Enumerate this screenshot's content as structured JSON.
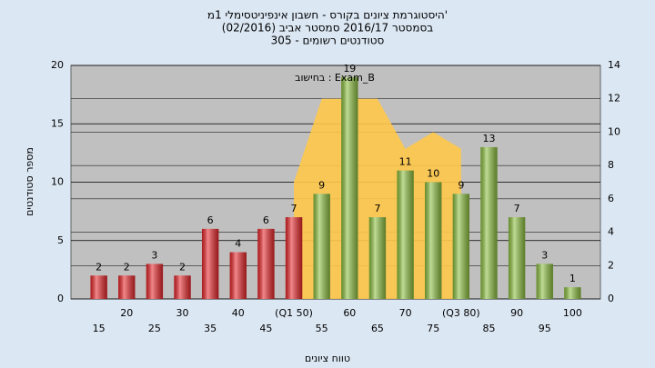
{
  "chart_data": {
    "type": "bar",
    "title": [
      "היסטוגרמת ציונים בקורס - חשבון אינפיניטסימלי 1מ'",
      "בסמסטר 2016/17 סמסטר אביב (02/2016)",
      "סטודנטים רשומים - 305"
    ],
    "annotation": "בחישוב : Exam_B",
    "x_label": "טווח ציונים",
    "y_label": "מספר סטודנטים",
    "categories": [
      "15",
      "20",
      "25",
      "30",
      "35",
      "40",
      "45",
      "(Q1 50)",
      "55",
      "60",
      "65",
      "70",
      "75",
      "(Q3 80)",
      "85",
      "90",
      "95",
      "100"
    ],
    "values": [
      2,
      2,
      3,
      2,
      6,
      4,
      6,
      7,
      9,
      19,
      7,
      11,
      10,
      9,
      13,
      7,
      3,
      1
    ],
    "colors": [
      "#e8262a",
      "#e8262a",
      "#e8262a",
      "#e8262a",
      "#e8262a",
      "#e8262a",
      "#e8262a",
      "#e8262a",
      "#8dc040",
      "#8dc040",
      "#8dc040",
      "#8dc040",
      "#8dc040",
      "#8dc040",
      "#8dc040",
      "#8dc040",
      "#8dc040",
      "#8dc040"
    ],
    "area": {
      "axis": "y2",
      "color": "#ffc84a",
      "values": [
        null,
        null,
        null,
        null,
        null,
        null,
        null,
        7,
        12,
        12,
        12,
        9,
        10,
        9,
        null,
        null,
        null,
        null
      ]
    },
    "ylim": [
      0,
      20
    ],
    "yticks": [
      0,
      5,
      10,
      15,
      20
    ],
    "y2lim": [
      0,
      14
    ],
    "y2ticks": [
      0,
      2,
      4,
      6,
      8,
      10,
      12,
      14
    ],
    "grid": true
  }
}
